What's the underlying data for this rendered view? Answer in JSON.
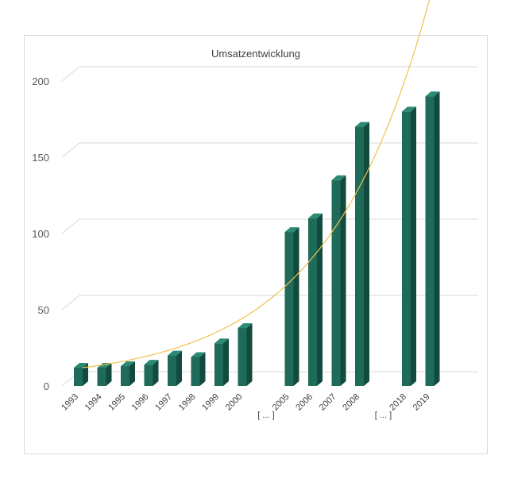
{
  "chart_data": {
    "type": "bar",
    "title": "Umsatzentwicklung",
    "categories": [
      "1993",
      "1994",
      "1995",
      "1996",
      "1997",
      "1998",
      "1999",
      "2000",
      "[ ... ]",
      "2005",
      "2006",
      "2007",
      "2008",
      "[ ... ]",
      "2018",
      "2019"
    ],
    "values": [
      12,
      12,
      13,
      14,
      20,
      19,
      28,
      38,
      null,
      101,
      110,
      135,
      170,
      null,
      180,
      190
    ],
    "ylim": [
      0,
      200
    ],
    "yticks": [
      0,
      50,
      100,
      150,
      200
    ],
    "trendline": {
      "type": "exponential",
      "color": "#f2c14e"
    },
    "bar_colors": {
      "front": "#1f6b5a",
      "side": "#124a3e",
      "top": "#2a8a74"
    },
    "grid": true,
    "legend": "none"
  }
}
